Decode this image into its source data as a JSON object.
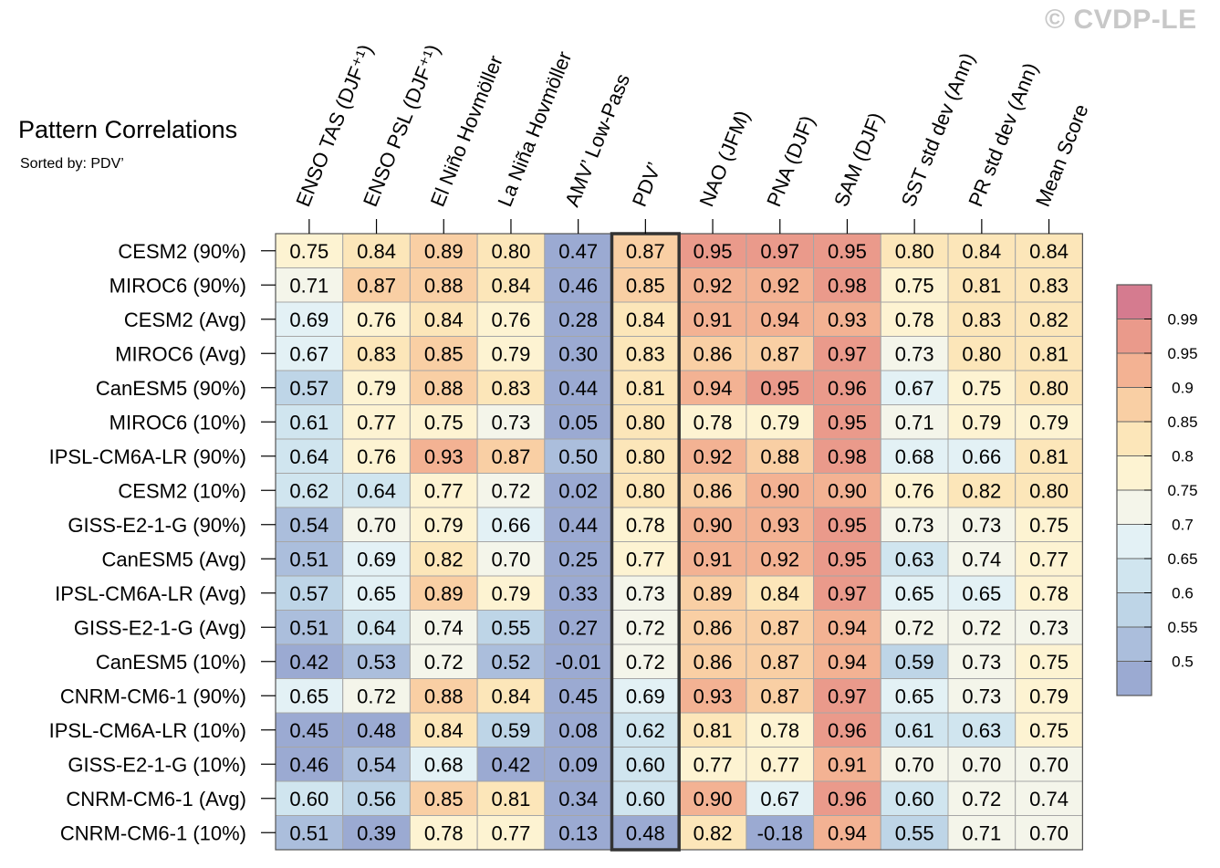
{
  "header": {
    "title": "Pattern Correlations",
    "subtitle": "Sorted by: PDV’",
    "watermark": "© CVDP-LE"
  },
  "chart_data": {
    "type": "heatmap",
    "title": "Pattern Correlations",
    "subtitle": "Sorted by: PDV’",
    "highlighted_column": "PDV’",
    "columns": [
      "ENSO TAS (DJF⁺¹)",
      "ENSO PSL (DJF⁺¹)",
      "El Niño Hovmöller",
      "La Niña Hovmöller",
      "AMV’ Low-Pass",
      "PDV’",
      "NAO (JFM)",
      "PNA (DJF)",
      "SAM (DJF)",
      "SST std dev (Ann)",
      "PR std dev (Ann)",
      "Mean Score"
    ],
    "rows": [
      "CESM2 (90%)",
      "MIROC6 (90%)",
      "CESM2 (Avg)",
      "MIROC6 (Avg)",
      "CanESM5 (90%)",
      "MIROC6 (10%)",
      "IPSL-CM6A-LR (90%)",
      "CESM2 (10%)",
      "GISS-E2-1-G (90%)",
      "CanESM5 (Avg)",
      "IPSL-CM6A-LR (Avg)",
      "GISS-E2-1-G (Avg)",
      "CanESM5 (10%)",
      "CNRM-CM6-1 (90%)",
      "IPSL-CM6A-LR (10%)",
      "GISS-E2-1-G (10%)",
      "CNRM-CM6-1 (Avg)",
      "CNRM-CM6-1 (10%)"
    ],
    "values": [
      [
        "0.75",
        "0.84",
        "0.89",
        "0.80",
        "0.47",
        "0.87",
        "0.95",
        "0.97",
        "0.95",
        "0.80",
        "0.84",
        "0.84"
      ],
      [
        "0.71",
        "0.87",
        "0.88",
        "0.84",
        "0.46",
        "0.85",
        "0.92",
        "0.92",
        "0.98",
        "0.75",
        "0.81",
        "0.83"
      ],
      [
        "0.69",
        "0.76",
        "0.84",
        "0.76",
        "0.28",
        "0.84",
        "0.91",
        "0.94",
        "0.93",
        "0.78",
        "0.83",
        "0.82"
      ],
      [
        "0.67",
        "0.83",
        "0.85",
        "0.79",
        "0.30",
        "0.83",
        "0.86",
        "0.87",
        "0.97",
        "0.73",
        "0.80",
        "0.81"
      ],
      [
        "0.57",
        "0.79",
        "0.88",
        "0.83",
        "0.44",
        "0.81",
        "0.94",
        "0.95",
        "0.96",
        "0.67",
        "0.75",
        "0.80"
      ],
      [
        "0.61",
        "0.77",
        "0.75",
        "0.73",
        "0.05",
        "0.80",
        "0.78",
        "0.79",
        "0.95",
        "0.71",
        "0.79",
        "0.79"
      ],
      [
        "0.64",
        "0.76",
        "0.93",
        "0.87",
        "0.50",
        "0.80",
        "0.92",
        "0.88",
        "0.98",
        "0.68",
        "0.66",
        "0.81"
      ],
      [
        "0.62",
        "0.64",
        "0.77",
        "0.72",
        "0.02",
        "0.80",
        "0.86",
        "0.90",
        "0.90",
        "0.76",
        "0.82",
        "0.80"
      ],
      [
        "0.54",
        "0.70",
        "0.79",
        "0.66",
        "0.44",
        "0.78",
        "0.90",
        "0.93",
        "0.95",
        "0.73",
        "0.73",
        "0.75"
      ],
      [
        "0.51",
        "0.69",
        "0.82",
        "0.70",
        "0.25",
        "0.77",
        "0.91",
        "0.92",
        "0.95",
        "0.63",
        "0.74",
        "0.77"
      ],
      [
        "0.57",
        "0.65",
        "0.89",
        "0.79",
        "0.33",
        "0.73",
        "0.89",
        "0.84",
        "0.97",
        "0.65",
        "0.65",
        "0.78"
      ],
      [
        "0.51",
        "0.64",
        "0.74",
        "0.55",
        "0.27",
        "0.72",
        "0.86",
        "0.87",
        "0.94",
        "0.72",
        "0.72",
        "0.73"
      ],
      [
        "0.42",
        "0.53",
        "0.72",
        "0.52",
        "-0.01",
        "0.72",
        "0.86",
        "0.87",
        "0.94",
        "0.59",
        "0.73",
        "0.75"
      ],
      [
        "0.65",
        "0.72",
        "0.88",
        "0.84",
        "0.45",
        "0.69",
        "0.93",
        "0.87",
        "0.97",
        "0.65",
        "0.73",
        "0.79"
      ],
      [
        "0.45",
        "0.48",
        "0.84",
        "0.59",
        "0.08",
        "0.62",
        "0.81",
        "0.78",
        "0.96",
        "0.61",
        "0.63",
        "0.75"
      ],
      [
        "0.46",
        "0.54",
        "0.68",
        "0.42",
        "0.09",
        "0.60",
        "0.77",
        "0.77",
        "0.91",
        "0.70",
        "0.70",
        "0.70"
      ],
      [
        "0.60",
        "0.56",
        "0.85",
        "0.81",
        "0.34",
        "0.60",
        "0.90",
        "0.67",
        "0.96",
        "0.60",
        "0.72",
        "0.74"
      ],
      [
        "0.51",
        "0.39",
        "0.78",
        "0.77",
        "0.13",
        "0.48",
        "0.82",
        "-0.18",
        "0.94",
        "0.55",
        "0.71",
        "0.70"
      ]
    ],
    "colorbar": {
      "levels": [
        0.5,
        0.55,
        0.6,
        0.65,
        0.7,
        0.75,
        0.8,
        0.85,
        0.9,
        0.95,
        0.99
      ],
      "labels": [
        "0.5",
        "0.55",
        "0.6",
        "0.65",
        "0.7",
        "0.75",
        "0.8",
        "0.85",
        "0.9",
        "0.95",
        "0.99"
      ],
      "colors": [
        "#9baad2",
        "#abbedc",
        "#bed5e7",
        "#d0e5ef",
        "#e3f1f5",
        "#f4f5ea",
        "#fdf3d2",
        "#fce6b9",
        "#f9cfa4",
        "#f3b293",
        "#ea9a8b",
        "#d57b8f"
      ]
    }
  }
}
